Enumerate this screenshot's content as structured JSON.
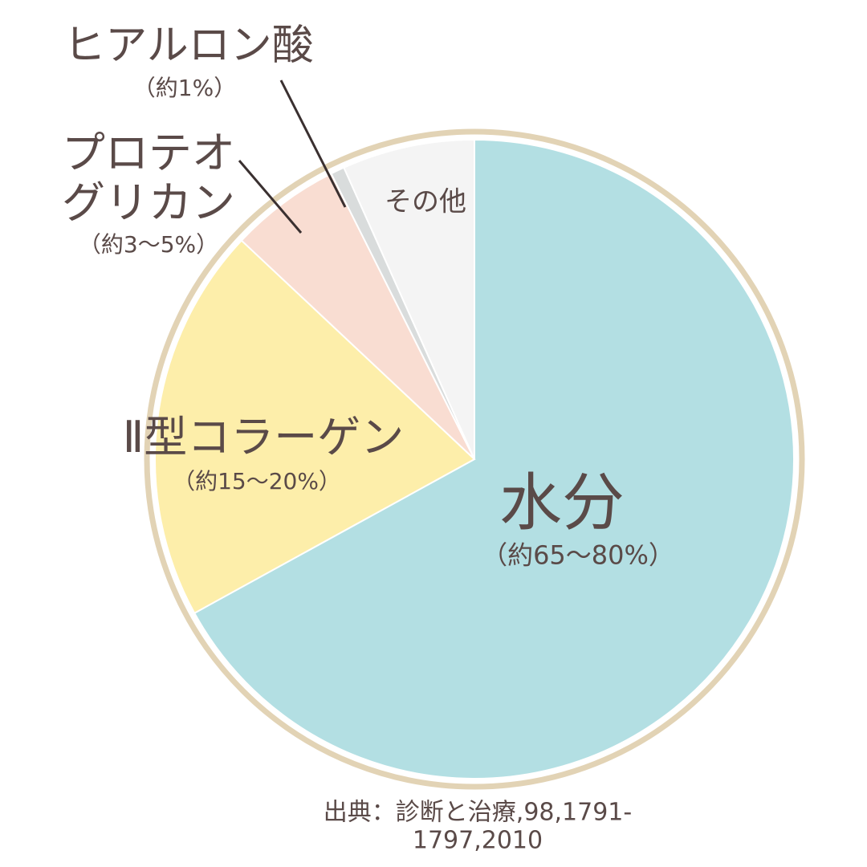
{
  "chart_data": {
    "type": "pie",
    "categories": [
      "水分",
      "Ⅱ型コラーゲン",
      "プロテオ\nグリカン",
      "ヒアルロン酸",
      "その他"
    ],
    "range_labels": [
      "（約65〜80%）",
      "（約15〜20%）",
      "（約3〜5%）",
      "（約1%）",
      null
    ],
    "values": [
      67,
      20,
      5.6,
      0.7,
      6.7
    ],
    "colors": [
      "#b3dfe3",
      "#fdeeaa",
      "#f9ddd2",
      "#d9dcdc",
      "#f4f4f4"
    ],
    "source": "出典：診断と治療,98,1791-1797,2010"
  }
}
